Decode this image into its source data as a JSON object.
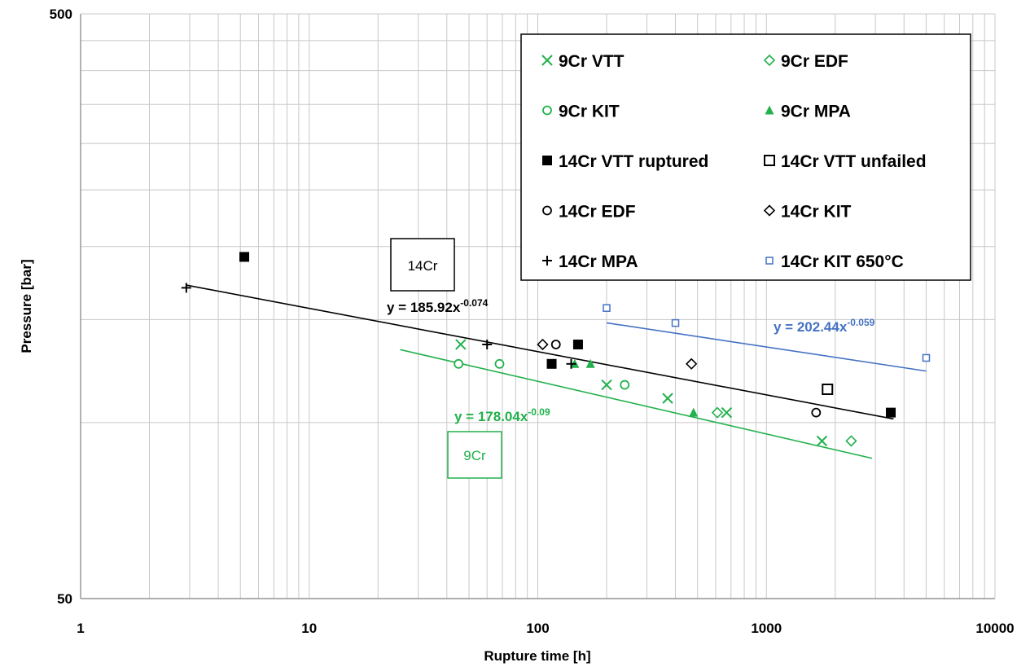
{
  "chart_data": {
    "type": "scatter",
    "xlabel": "Rupture time [h]",
    "ylabel": "Pressure [bar]",
    "x_scale": "log",
    "y_scale": "log",
    "xlim": [
      1,
      10000
    ],
    "ylim": [
      50,
      500
    ],
    "x_ticks": [
      "1",
      "10",
      "100",
      "1000",
      "10000"
    ],
    "y_ticks": [
      "50",
      "500"
    ],
    "grid": true,
    "legend_position": "top-right",
    "colors": {
      "green": "#22b14c",
      "black": "#000000",
      "blue": "#4472c4"
    },
    "series": [
      {
        "name": "9Cr VTT",
        "marker": "x",
        "color": "#22b14c",
        "points": [
          [
            46,
            136
          ],
          [
            200,
            116
          ],
          [
            370,
            110
          ],
          [
            670,
            104
          ],
          [
            1750,
            93
          ]
        ]
      },
      {
        "name": "9Cr EDF",
        "marker": "diamond-open",
        "color": "#22b14c",
        "points": [
          [
            610,
            104
          ],
          [
            2350,
            93
          ]
        ]
      },
      {
        "name": "9Cr KIT",
        "marker": "circle-open",
        "color": "#22b14c",
        "points": [
          [
            45,
            126
          ],
          [
            68,
            126
          ],
          [
            240,
            116
          ]
        ]
      },
      {
        "name": "9Cr MPA",
        "marker": "triangle-filled",
        "color": "#22b14c",
        "points": [
          [
            145,
            126
          ],
          [
            170,
            126
          ],
          [
            480,
            104
          ]
        ]
      },
      {
        "name": "14Cr VTT ruptured",
        "marker": "square-filled",
        "color": "#000000",
        "points": [
          [
            5.2,
            192
          ],
          [
            115,
            126
          ],
          [
            150,
            136
          ],
          [
            3500,
            104
          ]
        ]
      },
      {
        "name": "14Cr VTT unfailed",
        "marker": "square-open",
        "color": "#000000",
        "points": [
          [
            1850,
            114
          ]
        ]
      },
      {
        "name": "14Cr EDF",
        "marker": "circle-open",
        "color": "#000000",
        "points": [
          [
            120,
            136
          ],
          [
            1650,
            104
          ]
        ]
      },
      {
        "name": "14Cr KIT",
        "marker": "diamond-open",
        "color": "#000000",
        "points": [
          [
            105,
            136
          ],
          [
            470,
            126
          ]
        ]
      },
      {
        "name": "14Cr MPA",
        "marker": "plus",
        "color": "#000000",
        "points": [
          [
            2.9,
            170
          ],
          [
            60,
            136
          ],
          [
            140,
            126
          ]
        ]
      },
      {
        "name": "14Cr KIT 650°C",
        "marker": "square-open-small",
        "color": "#4472c4",
        "points": [
          [
            200,
            157
          ],
          [
            400,
            148
          ],
          [
            5000,
            129
          ]
        ]
      }
    ],
    "trendlines": [
      {
        "label": "y = 185.92x",
        "exponent": "-0.074",
        "a": 185.92,
        "b": -0.074,
        "x_range": [
          2.9,
          3600
        ],
        "color": "#000000"
      },
      {
        "label": "y = 178.04x",
        "exponent": "-0.09",
        "a": 178.04,
        "b": -0.09,
        "x_range": [
          25,
          2900
        ],
        "color": "#22b14c"
      },
      {
        "label": "y = 202.44x",
        "exponent": "-0.059",
        "a": 202.44,
        "b": -0.059,
        "x_range": [
          200,
          5000
        ],
        "color": "#4472c4"
      }
    ],
    "annotations": [
      {
        "text": "14Cr",
        "color": "#000000"
      },
      {
        "text": "9Cr",
        "color": "#22b14c"
      }
    ]
  }
}
